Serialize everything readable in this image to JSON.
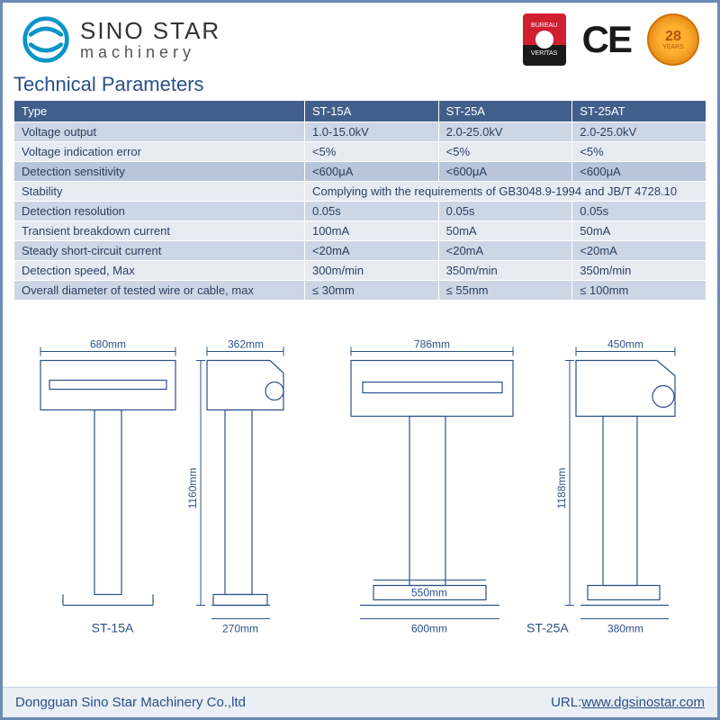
{
  "brand": {
    "name": "SINO STAR",
    "sub": "machinery",
    "logo_color": "#0a95c9"
  },
  "certifications": {
    "bv_top": "BUREAU",
    "bv_bottom": "VERITAS",
    "ce": "CE",
    "badge_num": "28",
    "badge_yrs": "YEARS"
  },
  "section_title": "Technical Parameters",
  "table": {
    "header_bg": "#415f8a",
    "header_fg": "#ffffff",
    "row_alt_a": "#cdd6e5",
    "row_alt_b": "#e6ebf2",
    "row_alt_c": "#b8c5da",
    "text_color": "#2a4060",
    "columns": [
      "Type",
      "ST-15A",
      "ST-25A",
      "ST-25AT"
    ],
    "rows": [
      {
        "style": "a",
        "label": "Voltage output",
        "c1": "1.0-15.0kV",
        "c2": "2.0-25.0kV",
        "c3": "2.0-25.0kV"
      },
      {
        "style": "b",
        "label": "Voltage indication error",
        "c1": "<5%",
        "c2": "<5%",
        "c3": "<5%"
      },
      {
        "style": "c",
        "label": "Detection sensitivity",
        "c1": "<600μA",
        "c2": "<600μA",
        "c3": "<600μA"
      },
      {
        "style": "b",
        "label": "Stability",
        "span": "Complying with the requirements of GB3048.9-1994 and JB/T 4728.10"
      },
      {
        "style": "a",
        "label": "Detection resolution",
        "c1": "0.05s",
        "c2": "0.05s",
        "c3": "0.05s"
      },
      {
        "style": "b",
        "label": "Transient breakdown current",
        "c1": "100mA",
        "c2": "50mA",
        "c3": "50mA"
      },
      {
        "style": "a",
        "label": "Steady short-circuit current",
        "c1": "<20mA",
        "c2": "<20mA",
        "c3": "<20mA"
      },
      {
        "style": "b",
        "label": "Detection speed, Max",
        "c1": "300m/min",
        "c2": "350m/min",
        "c3": "350m/min"
      },
      {
        "style": "a",
        "label": "Overall diameter of tested wire or cable, max",
        "c1": "≤ 30mm",
        "c2": "≤ 55mm",
        "c3": "≤ 100mm"
      }
    ]
  },
  "diagrams": {
    "line_color": "#2a5088",
    "m15a": {
      "label": "ST-15A",
      "front_w": "680mm",
      "side_w": "362mm",
      "height": "1160mm",
      "base_w": "270mm"
    },
    "m25a": {
      "label": "ST-25A",
      "front_w": "786mm",
      "side_w": "450mm",
      "height": "1188mm",
      "base_front_w": "550mm",
      "base_outer_w": "600mm",
      "base_side_w": "380mm"
    }
  },
  "footer": {
    "company": "Dongguan Sino Star Machinery Co.,ltd",
    "url_label": "URL:",
    "url_value": "www.dgsinostar.com"
  }
}
